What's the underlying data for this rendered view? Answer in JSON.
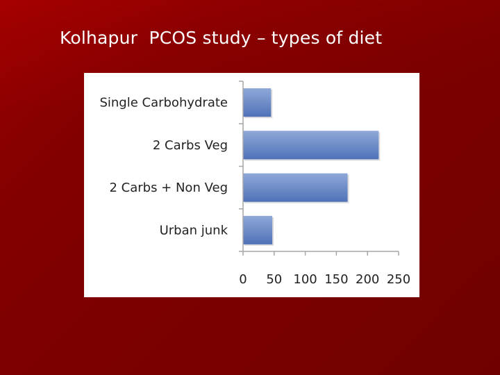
{
  "slide": {
    "title": "Kolhapur  PCOS study – types of diet"
  },
  "colors": {
    "background": "#7a0000",
    "bar_fill_top": "#8fa8d8",
    "bar_fill_bottom": "#4f72b8",
    "axis": "#a6a6a6"
  },
  "chart_data": {
    "type": "bar",
    "orientation": "horizontal",
    "categories": [
      "Single Carbohydrate",
      "2 Carbs Veg",
      "2 Carbs + Non Veg",
      "Urban junk"
    ],
    "values": [
      45,
      218,
      168,
      47
    ],
    "xlim": [
      0,
      250
    ],
    "xticks": [
      "0",
      "50",
      "100",
      "150",
      "200",
      "250"
    ],
    "grid": false,
    "legend": "none"
  }
}
